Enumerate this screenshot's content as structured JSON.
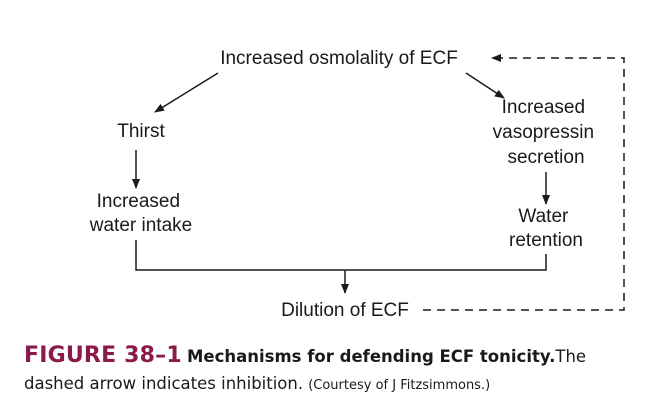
{
  "nodes": {
    "osmolality": "Increased osmolality of ECF",
    "thirst": "Thirst",
    "water_intake": [
      "Increased",
      "water intake"
    ],
    "vasopressin": [
      "Increased",
      "vasopressin",
      "secretion"
    ],
    "retention": [
      "Water",
      "retention"
    ],
    "dilution": "Dilution of ECF"
  },
  "caption": {
    "label": "FIGURE 38–1",
    "title": "Mechanisms for defending ECF tonicity.",
    "text_1": "The",
    "text_2": "dashed arrow indicates inhibition.",
    "credit": "(Courtesy of J Fitzsimmons.)"
  },
  "colors": {
    "figure_label": "#8a1a4a",
    "text": "#1a1a1a",
    "lines": "#1a1a1a"
  }
}
